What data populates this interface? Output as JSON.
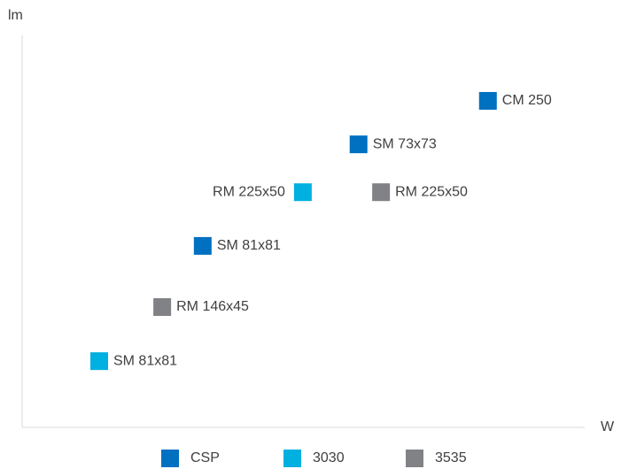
{
  "chart_data": {
    "type": "scatter",
    "y_label": "lm",
    "x_label": "W",
    "xlim": [
      0,
      100
    ],
    "ylim": [
      0,
      100
    ],
    "series": [
      {
        "name": "CSP",
        "color": "#0070c0",
        "x": [
          82.8,
          59.8,
          32.1
        ],
        "y": [
          83.3,
          72.2,
          46.3
        ],
        "point_labels": [
          "CM 250",
          "SM 73x73",
          "SM 81x81"
        ]
      },
      {
        "name": "3030",
        "color": "#00b0e0",
        "x": [
          49.9,
          13.7
        ],
        "y": [
          60.0,
          16.9
        ],
        "point_labels": [
          "RM 225x50",
          "SM 81x81"
        ]
      },
      {
        "name": "3535",
        "color": "#808285",
        "x": [
          63.8,
          24.9
        ],
        "y": [
          60.0,
          30.7
        ],
        "point_labels": [
          "RM 225x50",
          "RM 146x45"
        ]
      }
    ]
  }
}
